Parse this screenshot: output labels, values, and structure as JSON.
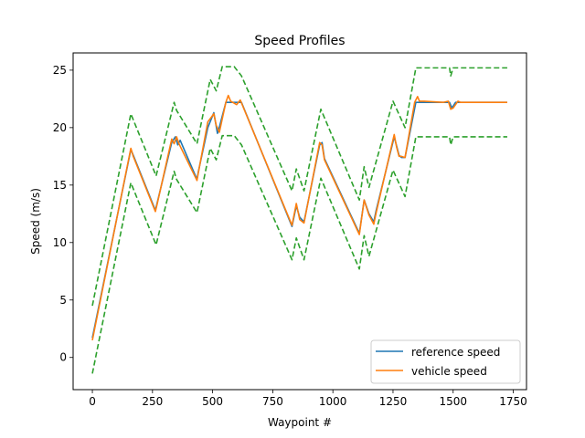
{
  "chart_data": {
    "type": "line",
    "title": "Speed Profiles",
    "xlabel": "Waypoint #",
    "ylabel": "Speed (m/s)",
    "xlim": [
      -80,
      1805
    ],
    "ylim": [
      -2.8,
      26.5
    ],
    "xticks": [
      0,
      250,
      500,
      750,
      1000,
      1250,
      1500,
      1750
    ],
    "yticks": [
      0,
      5,
      10,
      15,
      20,
      25
    ],
    "grid": false,
    "legend_position": "lower right",
    "series": [
      {
        "name": "reference speed",
        "color": "#1f77b4",
        "style": "solid",
        "x": [
          0,
          160,
          170,
          262,
          270,
          330,
          345,
          355,
          365,
          435,
          440,
          480,
          505,
          520,
          530,
          555,
          620,
          830,
          848,
          862,
          880,
          945,
          955,
          965,
          1110,
          1130,
          1150,
          1170,
          1180,
          1255,
          1265,
          1275,
          1285,
          1300,
          1345,
          1355,
          1485,
          1495,
          1510,
          1725
        ],
        "y": [
          1.7,
          18.1,
          17.6,
          12.8,
          13.5,
          18.7,
          19.2,
          18.5,
          18.9,
          15.5,
          16.1,
          20.0,
          21.3,
          19.5,
          20.2,
          22.2,
          22.2,
          11.4,
          13.2,
          12.2,
          11.8,
          18.5,
          18.7,
          17.3,
          10.8,
          13.7,
          12.5,
          11.8,
          12.8,
          19.2,
          18.4,
          17.6,
          17.4,
          17.4,
          22.2,
          22.2,
          22.2,
          21.7,
          22.2,
          22.2
        ]
      },
      {
        "name": "vehicle speed",
        "color": "#ff7f0e",
        "style": "solid",
        "x": [
          0,
          160,
          170,
          262,
          270,
          330,
          340,
          350,
          360,
          435,
          440,
          480,
          505,
          515,
          528,
          555,
          565,
          575,
          600,
          615,
          830,
          848,
          862,
          880,
          945,
          955,
          965,
          1110,
          1130,
          1150,
          1170,
          1180,
          1255,
          1265,
          1275,
          1285,
          1300,
          1340,
          1352,
          1360,
          1380,
          1460,
          1480,
          1490,
          1500,
          1520,
          1530,
          1725
        ],
        "y": [
          1.5,
          18.2,
          17.5,
          12.7,
          13.4,
          19.0,
          18.6,
          19.2,
          18.6,
          15.4,
          16.0,
          20.5,
          21.2,
          20.2,
          19.6,
          22.2,
          22.8,
          22.3,
          22.0,
          22.4,
          11.5,
          13.4,
          12.0,
          11.7,
          18.7,
          18.5,
          17.2,
          10.7,
          13.7,
          12.4,
          11.6,
          12.6,
          19.4,
          18.3,
          17.5,
          17.5,
          17.4,
          22.2,
          22.7,
          22.3,
          22.3,
          22.2,
          22.3,
          21.6,
          21.7,
          22.3,
          22.2,
          22.2
        ]
      },
      {
        "name": "",
        "color": "#2ca02c",
        "style": "dashed",
        "x": [
          0,
          160,
          265,
          340,
          350,
          435,
          490,
          515,
          540,
          590,
          620,
          830,
          848,
          880,
          950,
          1110,
          1130,
          1150,
          1250,
          1300,
          1345,
          1485,
          1490,
          1500,
          1725
        ],
        "y": [
          4.5,
          21.2,
          15.8,
          22.2,
          21.5,
          18.6,
          24.2,
          23.2,
          25.3,
          25.3,
          24.5,
          14.5,
          16.4,
          14.5,
          21.6,
          13.7,
          16.6,
          14.8,
          22.3,
          20.0,
          25.2,
          25.2,
          24.5,
          25.2,
          25.2
        ]
      },
      {
        "name": "",
        "color": "#2ca02c",
        "style": "dashed",
        "x": [
          0,
          160,
          265,
          340,
          350,
          435,
          490,
          515,
          540,
          590,
          620,
          830,
          848,
          880,
          950,
          1110,
          1130,
          1150,
          1250,
          1300,
          1345,
          1485,
          1490,
          1500,
          1725
        ],
        "y": [
          -1.4,
          15.2,
          9.8,
          16.2,
          15.5,
          12.6,
          18.2,
          17.2,
          19.3,
          19.3,
          18.5,
          8.5,
          10.4,
          8.5,
          15.6,
          7.7,
          10.6,
          8.8,
          16.3,
          14.0,
          19.2,
          19.2,
          18.5,
          19.2,
          19.2
        ]
      }
    ]
  }
}
